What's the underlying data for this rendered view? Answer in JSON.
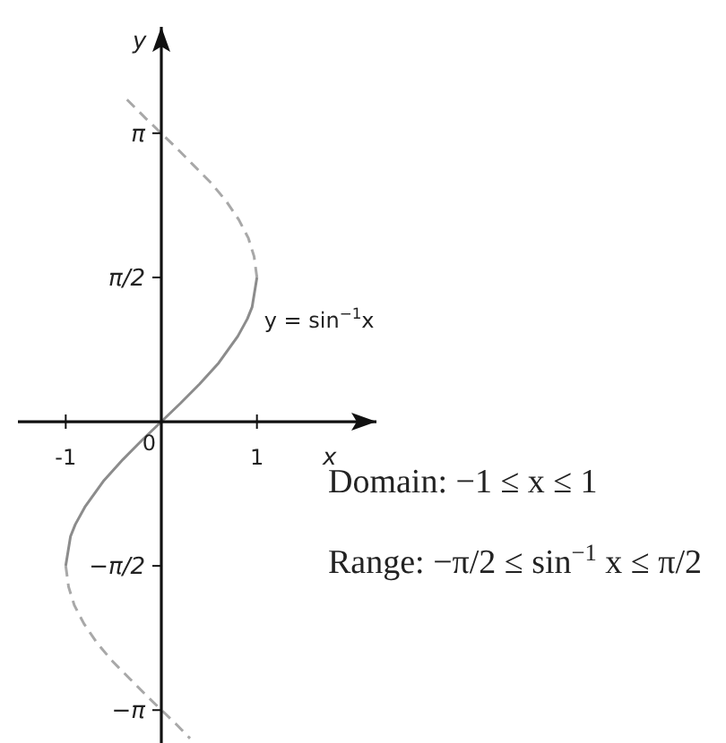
{
  "chart_data": {
    "type": "line",
    "xlabel": "x",
    "ylabel": "y",
    "xlim": [
      -1.5,
      2.25
    ],
    "ylim": [
      -3.5,
      4.3
    ],
    "xticks": [
      {
        "value": -1,
        "label": "-1"
      },
      1
    ],
    "yticks": [
      {
        "value": -3.1416,
        "label": "−π"
      },
      {
        "value": -1.5708,
        "label": "−π/2"
      },
      {
        "value": 1.5708,
        "label": "π/2"
      },
      {
        "value": 3.1416,
        "label": "π"
      }
    ],
    "grid": false,
    "marker": "none",
    "series": [
      {
        "name": "y = sin$^{−1}$x",
        "color": "#8c8c8c",
        "line_style": "solid",
        "x": [
          -1,
          -0.95,
          -0.9,
          -0.8,
          -0.6,
          -0.4,
          -0.2,
          0,
          0.2,
          0.4,
          0.6,
          0.8,
          0.9,
          0.95,
          1
        ],
        "values": [
          -1.57,
          -1.25,
          -1.12,
          -0.93,
          -0.64,
          -0.41,
          -0.2,
          0,
          0.2,
          0.41,
          0.64,
          0.93,
          1.12,
          1.25,
          1.57
        ]
      },
      {
        "color": "#a8a8a8",
        "line_style": "dashed",
        "x": [
          1,
          0.97,
          0.91,
          0.81,
          0.68,
          0.52,
          0.33,
          0.14,
          0,
          -0.16,
          -0.4
        ],
        "values": [
          1.57,
          1.8,
          2,
          2.2,
          2.4,
          2.6,
          2.8,
          3,
          3.14,
          3.3,
          3.55
        ]
      },
      {
        "color": "#a8a8a8",
        "line_style": "dashed",
        "x": [
          -1,
          -0.97,
          -0.91,
          -0.81,
          -0.68,
          -0.52,
          -0.33,
          -0.14,
          0,
          0.16,
          0.3
        ],
        "values": [
          -1.57,
          -1.8,
          -2,
          -2.2,
          -2.4,
          -2.6,
          -2.8,
          -3,
          -3.14,
          -3.3,
          -3.45
        ]
      }
    ],
    "annotations": [
      {
        "text": "0",
        "x": 0,
        "y": 0
      },
      "Domain: −1 ≤ x ≤ 1",
      "Range: −π/2 ≤ sin$^{−1}$ x ≤ π/2"
    ]
  }
}
